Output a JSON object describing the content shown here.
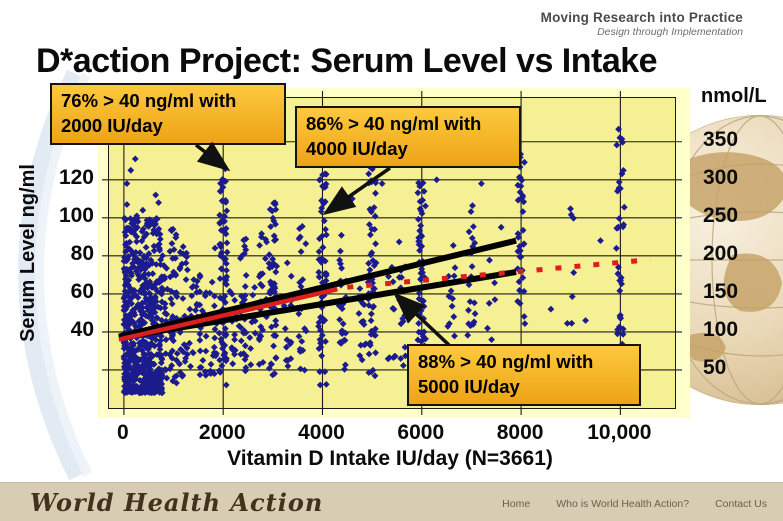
{
  "header": {
    "tagline": "Moving Research into Practice",
    "subtagline": "Design through Implementation"
  },
  "title": "D*action Project: Serum Level vs Intake",
  "colors": {
    "callout_bg": "#F2B321",
    "plot_bg": "#F6F094",
    "plot_band_bg": "#FFFFC9",
    "marker": "#1b1b8e",
    "trend_black": "#000000",
    "trend_red": "#DB1F1F",
    "footer_bg": "#D8CCB2"
  },
  "chart_data": {
    "type": "scatter",
    "title": "D*action Project: Serum Level vs Intake",
    "xlabel": "Vitamin D Intake IU/day (N=3661)",
    "ylabel_left": "Serum Level ng/ml",
    "ylabel_right": "nmol/L",
    "sample_size": 3661,
    "xlim": [
      -300,
      11100
    ],
    "ylim_ngml": [
      0,
      163
    ],
    "x_ticks": [
      0,
      2000,
      4000,
      6000,
      8000,
      10000
    ],
    "x_tick_labels": [
      "0",
      "2000",
      "4000",
      "6000",
      "8000",
      "10,000"
    ],
    "y_left_ticks": [
      40,
      60,
      80,
      100,
      120
    ],
    "y_right_ticks_nmol": [
      50,
      100,
      150,
      200,
      250,
      300,
      350
    ],
    "unit_conversion_nmol_per_ngml": 2.5,
    "grid": {
      "x_step": 2000,
      "y_step": 20,
      "y_line_min": 20,
      "y_line_max": 140,
      "x_line_min": 0,
      "x_line_max": 10000
    },
    "annotations": [
      {
        "line1": "76% > 40 ng/ml with",
        "line2": "2000 IU/day",
        "points_at_x": 2000
      },
      {
        "line1": "86% > 40 ng/ml with",
        "line2": "4000 IU/day",
        "points_at_x": 4000
      },
      {
        "line1": "88% > 40 ng/ml with",
        "line2": "5000 IU/day",
        "points_at_x": 5000
      }
    ],
    "trend_lines": [
      {
        "name": "regression-upper-black",
        "color": "#000000",
        "style": "solid",
        "width": 6,
        "x1": -100,
        "y1": 37.5,
        "x2": 7900,
        "y2": 88
      },
      {
        "name": "regression-lower-black",
        "color": "#000000",
        "style": "solid",
        "width": 6,
        "x1": -100,
        "y1": 37,
        "x2": 7900,
        "y2": 71.5
      },
      {
        "name": "red-fit-solid",
        "color": "#DB1F1F",
        "style": "solid",
        "width": 4.5,
        "x1": -100,
        "y1": 36,
        "x2": 4300,
        "y2": 62.5
      },
      {
        "name": "red-fit-dashed",
        "color": "#DB1F1F",
        "style": "dashed",
        "width": 5,
        "x1": 4500,
        "y1": 63.5,
        "x2": 10600,
        "y2": 78
      }
    ],
    "scatter": {
      "marker": "diamond",
      "color": "#1b1b8e",
      "marker_px": 6.8,
      "cloud": {
        "x_min": 0,
        "x_max": 780,
        "n": 560,
        "y_min": 8,
        "y_max": 100
      },
      "stripes": [
        [
          800,
          24,
          15,
          75
        ],
        [
          1000,
          45,
          12,
          95
        ],
        [
          1200,
          30,
          15,
          88
        ],
        [
          1400,
          18,
          18,
          70
        ],
        [
          1600,
          22,
          15,
          80
        ],
        [
          1800,
          20,
          18,
          85
        ],
        [
          2000,
          75,
          12,
          126
        ],
        [
          2200,
          15,
          20,
          70
        ],
        [
          2400,
          30,
          15,
          90
        ],
        [
          2600,
          12,
          22,
          65
        ],
        [
          2800,
          25,
          18,
          92
        ],
        [
          3000,
          55,
          14,
          108
        ],
        [
          3300,
          14,
          22,
          80
        ],
        [
          3600,
          22,
          18,
          100
        ],
        [
          4000,
          70,
          12,
          148
        ],
        [
          4400,
          24,
          20,
          95
        ],
        [
          4800,
          14,
          25,
          80
        ],
        [
          5000,
          55,
          15,
          128
        ],
        [
          5400,
          10,
          25,
          75
        ],
        [
          5600,
          16,
          22,
          90
        ],
        [
          6000,
          60,
          16,
          142
        ],
        [
          6600,
          12,
          30,
          95
        ],
        [
          7000,
          22,
          25,
          112
        ],
        [
          7400,
          6,
          35,
          80
        ],
        [
          8000,
          48,
          18,
          138
        ],
        [
          9000,
          7,
          42,
          108
        ],
        [
          10000,
          42,
          22,
          150
        ]
      ],
      "outliers": [
        [
          60,
          118
        ],
        [
          60,
          107
        ],
        [
          140,
          125
        ],
        [
          230,
          131
        ],
        [
          380,
          104
        ],
        [
          520,
          99
        ],
        [
          640,
          112
        ],
        [
          260,
          101
        ],
        [
          460,
          96
        ],
        [
          700,
          108
        ],
        [
          4600,
          110
        ],
        [
          5200,
          118
        ],
        [
          6300,
          120
        ],
        [
          7200,
          118
        ],
        [
          7600,
          95
        ],
        [
          8600,
          52
        ],
        [
          9300,
          46
        ],
        [
          9600,
          88
        ]
      ]
    }
  },
  "footer": {
    "brand": "World Health Action",
    "links": [
      "Home",
      "Who is World Health Action?",
      "Contact Us"
    ]
  }
}
